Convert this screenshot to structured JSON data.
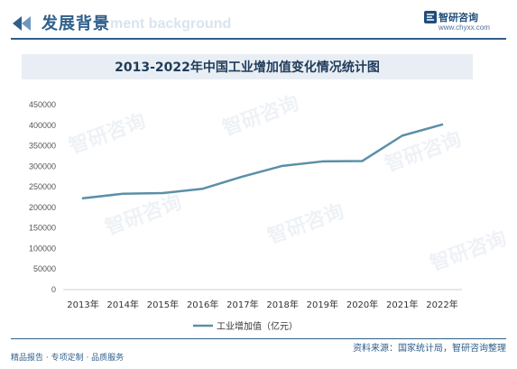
{
  "header": {
    "section_title": "发展背景",
    "section_ghost": "ment background",
    "brand_name": "智研咨询",
    "brand_url": "www.chyxx.com",
    "accent_color": "#2f5f8a"
  },
  "footer": {
    "left_text": "精品报告 · 专项定制 · 品质服务",
    "source_text": "资料来源：国家统计局，智研咨询整理"
  },
  "watermark": {
    "text": "智研咨询"
  },
  "chart_data": {
    "type": "line",
    "title": "2013-2022年中国工业增加值变化情况统计图",
    "categories": [
      "2013年",
      "2014年",
      "2015年",
      "2016年",
      "2017年",
      "2018年",
      "2019年",
      "2020年",
      "2021年",
      "2022年"
    ],
    "series": [
      {
        "name": "工业增加值（亿元）",
        "values": [
          222338,
          233197,
          234969,
          245406,
          275119,
          301089,
          311859,
          312903,
          374546,
          401644
        ],
        "color": "#5b8fa8"
      }
    ],
    "ylim": [
      0,
      450000
    ],
    "yticks": [
      "0",
      "50000",
      "100000",
      "150000",
      "200000",
      "250000",
      "300000",
      "350000",
      "400000",
      "450000"
    ],
    "grid": false,
    "legend": "bottom"
  }
}
